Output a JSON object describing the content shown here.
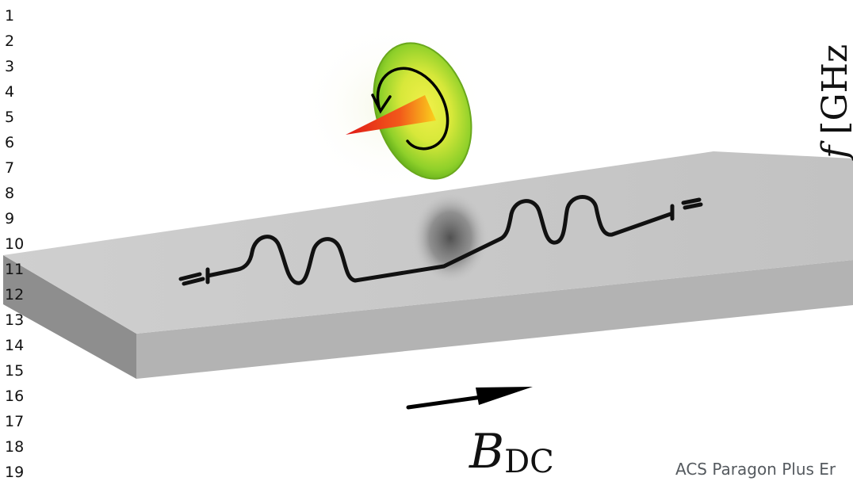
{
  "line_numbers": [
    "1",
    "2",
    "3",
    "4",
    "5",
    "6",
    "7",
    "8",
    "9",
    "10",
    "11",
    "12",
    "13",
    "14",
    "15",
    "16",
    "17",
    "18",
    "19"
  ],
  "figure": {
    "axis_label_var": "f",
    "axis_label_unit": " [GHz",
    "field_label_var": "B",
    "field_label_sub": "DC"
  },
  "footer": {
    "text": "ACS Paragon Plus Er"
  },
  "colors": {
    "slab_top": "#c9c9c9",
    "slab_front": "#b4b4b4",
    "slab_side": "#8c8c8c",
    "resonator_line": "#111111",
    "disk_green": "#7ec820",
    "disk_yellow": "#e6ec3a",
    "cone_red": "#e8241c",
    "cone_orange": "#f7a21a"
  },
  "icons": {
    "field_arrow": "arrow-right-icon",
    "precession_arrow": "circular-arrow-icon"
  }
}
